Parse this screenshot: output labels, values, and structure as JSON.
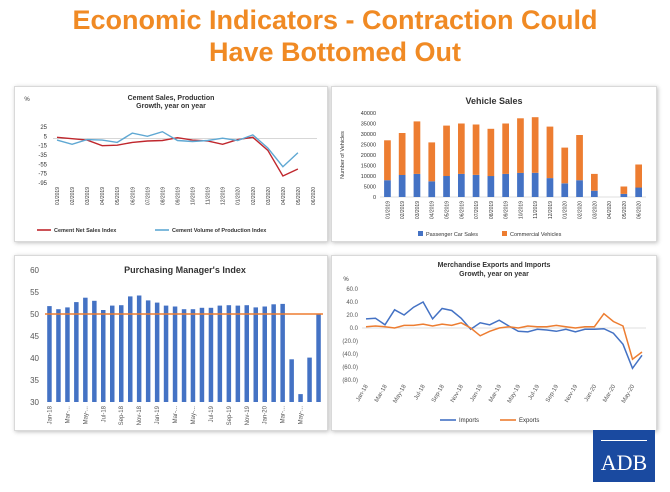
{
  "page": {
    "title_line1": "Economic Indicators - Contraction Could",
    "title_line2": "Have Bottomed Out",
    "logo": "ADB"
  },
  "colors": {
    "title": "#f08a24",
    "cement_sales": "#c0272d",
    "cement_prod": "#5fa8d3",
    "passenger": "#4472c4",
    "commercial": "#ed7d31",
    "pmi_bar": "#4472c4",
    "pmi_line": "#ed7d31",
    "imports": "#4472c4",
    "exports": "#ed7d31"
  },
  "chart_data": [
    {
      "id": "cement",
      "type": "line",
      "title": "Cement Sales, Production",
      "subtitle": "Growth, year on year",
      "ylabel": "%",
      "ylim": [
        -95,
        25
      ],
      "yticks": [
        "25",
        "5",
        "-15",
        "-35",
        "-55",
        "-75",
        "-95"
      ],
      "yticks_values": [
        25,
        5,
        -15,
        -35,
        -55,
        -75,
        -95
      ],
      "categories": [
        "01/2019",
        "02/2019",
        "03/2019",
        "04/2019",
        "05/2019",
        "06/2019",
        "07/2019",
        "08/2019",
        "09/2019",
        "10/2019",
        "11/2019",
        "12/2019",
        "01/2020",
        "02/2020",
        "03/2020",
        "04/2020",
        "05/2020",
        "06/2020"
      ],
      "series": [
        {
          "name": "Cement Net Sales Index",
          "values": [
            3,
            0,
            -3,
            -15,
            -14,
            -8,
            -5,
            -4,
            2,
            -3,
            -5,
            -12,
            -2,
            3,
            -25,
            -80,
            -65,
            null
          ]
        },
        {
          "name": "Cement Volume of Production Index",
          "values": [
            -3,
            -12,
            -2,
            -3,
            -8,
            12,
            5,
            15,
            -4,
            -6,
            -4,
            1,
            -4,
            8,
            -20,
            -60,
            -30,
            null
          ]
        }
      ]
    },
    {
      "id": "vehicle",
      "type": "bar",
      "title": "Vehicle Sales",
      "ylabel": "Number of Vehicles",
      "ylim": [
        0,
        40000
      ],
      "yticks": [
        "0",
        "5000",
        "10000",
        "15000",
        "20000",
        "25000",
        "30000",
        "35000",
        "40000"
      ],
      "yticks_values": [
        0,
        5000,
        10000,
        15000,
        20000,
        25000,
        30000,
        35000,
        40000
      ],
      "categories": [
        "01/2019",
        "02/2019",
        "03/2019",
        "04/2019",
        "05/2019",
        "06/2019",
        "07/2019",
        "08/2019",
        "09/2019",
        "10/2019",
        "11/2019",
        "12/2019",
        "01/2020",
        "02/2020",
        "03/2020",
        "04/2020",
        "05/2020",
        "06/2020"
      ],
      "series": [
        {
          "name": "Passenger Car Sales",
          "values": [
            8000,
            10500,
            11000,
            7500,
            10000,
            11000,
            10500,
            10000,
            11000,
            11500,
            11500,
            9000,
            6500,
            8000,
            3000,
            0,
            1500,
            4500
          ]
        },
        {
          "name": "Commercial Vehicles",
          "values": [
            19000,
            20000,
            25000,
            18500,
            24000,
            24000,
            24000,
            22500,
            24000,
            26000,
            26500,
            24500,
            17000,
            21500,
            8000,
            0,
            3500,
            11000
          ]
        }
      ]
    },
    {
      "id": "pmi",
      "type": "bar",
      "title": "Purchasing Manager's Index",
      "ylim": [
        30,
        60
      ],
      "yticks": [
        "30",
        "35",
        "40",
        "45",
        "50",
        "55",
        "60"
      ],
      "yticks_values": [
        30,
        35,
        40,
        45,
        50,
        55,
        60
      ],
      "xticks": [
        "Jan-18",
        "Mar-...",
        "May-...",
        "Jul-18",
        "Sep-18",
        "Nov-18",
        "Jan-19",
        "Mar-...",
        "May-...",
        "Jul-19",
        "Sep-19",
        "Nov-19",
        "Jan-20",
        "Mar-...",
        "May-..."
      ],
      "values": [
        51.8,
        51.1,
        51.5,
        52.7,
        53.7,
        53.0,
        50.9,
        51.9,
        52.0,
        54.0,
        54.2,
        53.1,
        52.6,
        51.9,
        51.7,
        51.1,
        51.1,
        51.4,
        51.4,
        51.9,
        52.0,
        51.9,
        52.0,
        51.5,
        51.7,
        52.2,
        52.3,
        39.7,
        31.8,
        40.1,
        49.9
      ],
      "reference_line": 50
    },
    {
      "id": "trade",
      "type": "line",
      "title": "Merchandise Exports and Imports",
      "subtitle": "Growth, year on year",
      "ylabel": "%",
      "ylim": [
        -80,
        60
      ],
      "yticks": [
        "60.0",
        "40.0",
        "20.0",
        "0.0",
        "(20.0)",
        "(40.0)",
        "(60.0)",
        "(80.0)"
      ],
      "yticks_values": [
        60,
        40,
        20,
        0,
        -20,
        -40,
        -60,
        -80
      ],
      "xticks": [
        "Jan-18",
        "Mar-18",
        "May-18",
        "Jul-18",
        "Sep-18",
        "Nov-18",
        "Jan-19",
        "Mar-19",
        "May-19",
        "Jul-19",
        "Sep-19",
        "Nov-19",
        "Jan-20",
        "Mar-20",
        "May-20"
      ],
      "series": [
        {
          "name": "Imports",
          "values": [
            14,
            15,
            5,
            28,
            20,
            32,
            40,
            14,
            30,
            27,
            15,
            -2,
            8,
            5,
            12,
            3,
            -5,
            -6,
            -2,
            -3,
            -5,
            -2,
            -6,
            -2,
            -2,
            -1,
            -8,
            -25,
            -62,
            -42
          ]
        },
        {
          "name": "Exports",
          "values": [
            2,
            3,
            2,
            0,
            4,
            4,
            6,
            3,
            6,
            4,
            8,
            0,
            -12,
            -5,
            0,
            2,
            0,
            3,
            2,
            2,
            4,
            2,
            0,
            2,
            2,
            22,
            10,
            3,
            -48,
            -37
          ]
        }
      ]
    }
  ]
}
